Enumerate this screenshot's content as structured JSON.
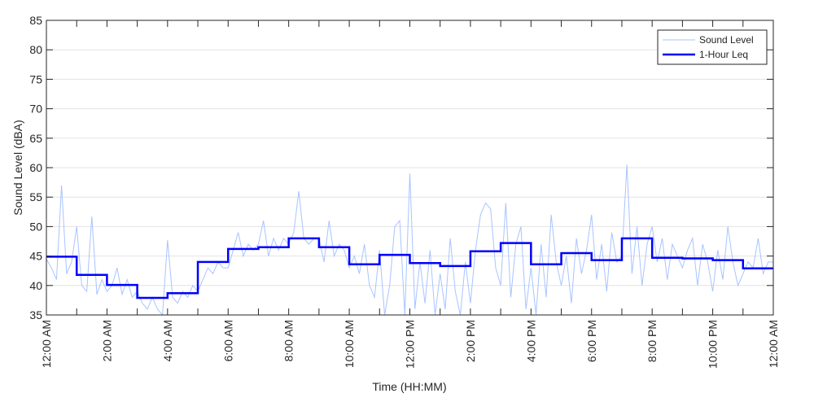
{
  "chart_data": {
    "type": "line",
    "title": "",
    "xlabel": "Time (HH:MM)",
    "ylabel": "Sound Level (dBA)",
    "xlim_hours": [
      0,
      24
    ],
    "ylim": [
      35,
      85
    ],
    "y_ticks": [
      35,
      40,
      45,
      50,
      55,
      60,
      65,
      70,
      75,
      80,
      85
    ],
    "x_tick_labels": [
      "12:00 AM",
      "2:00 AM",
      "4:00 AM",
      "6:00 AM",
      "8:00 AM",
      "10:00 AM",
      "12:00 PM",
      "2:00 PM",
      "4:00 PM",
      "6:00 PM",
      "8:00 PM",
      "10:00 PM",
      "12:00 AM"
    ],
    "x_tick_hours": [
      0,
      2,
      4,
      6,
      8,
      10,
      12,
      14,
      16,
      18,
      20,
      22,
      24
    ],
    "grid": "horizontal",
    "legend_position": "top-right",
    "series": [
      {
        "name": "Sound Level",
        "color": "#a8c4ff",
        "interval_minutes": 10,
        "values": [
          44.5,
          43,
          41,
          57,
          42,
          44,
          50,
          40,
          39,
          51.7,
          38.5,
          41,
          39,
          40,
          43,
          38.5,
          41,
          38,
          39,
          37,
          36,
          38,
          36,
          35,
          47.7,
          38,
          37,
          39,
          38,
          40,
          39,
          41,
          43,
          42,
          44,
          43,
          43,
          46,
          49,
          45,
          47,
          46,
          47,
          51,
          45,
          48,
          46,
          48,
          47,
          49,
          56,
          48,
          47,
          48,
          48,
          44,
          51,
          45,
          47,
          46,
          43,
          45,
          42,
          47,
          40,
          38,
          46,
          35,
          40,
          50,
          51,
          35,
          59,
          36,
          44,
          37,
          46,
          35,
          42,
          36,
          48,
          39,
          35,
          44,
          37,
          46,
          52,
          54,
          53,
          43,
          40,
          54,
          38,
          47,
          50,
          36,
          43,
          35,
          47,
          38,
          52,
          44,
          40,
          45,
          37,
          48,
          42,
          46,
          52,
          41,
          47,
          39,
          49,
          44,
          45,
          60.5,
          42,
          50,
          40,
          47,
          50,
          44,
          48,
          41,
          47,
          45,
          43,
          46,
          48,
          40,
          47,
          44,
          39,
          46,
          41,
          50,
          44,
          40,
          42,
          44,
          43,
          48,
          42,
          44,
          44
        ]
      },
      {
        "name": "1-Hour Leq",
        "color": "#0000ff",
        "interval_minutes": 60,
        "values": [
          44.9,
          41.8,
          40.1,
          37.9,
          38.7,
          44.0,
          46.2,
          46.5,
          48.0,
          46.5,
          43.6,
          45.2,
          43.8,
          43.3,
          45.8,
          47.2,
          43.6,
          45.5,
          44.3,
          48.0,
          44.7,
          44.6,
          44.3,
          42.9
        ]
      }
    ]
  }
}
